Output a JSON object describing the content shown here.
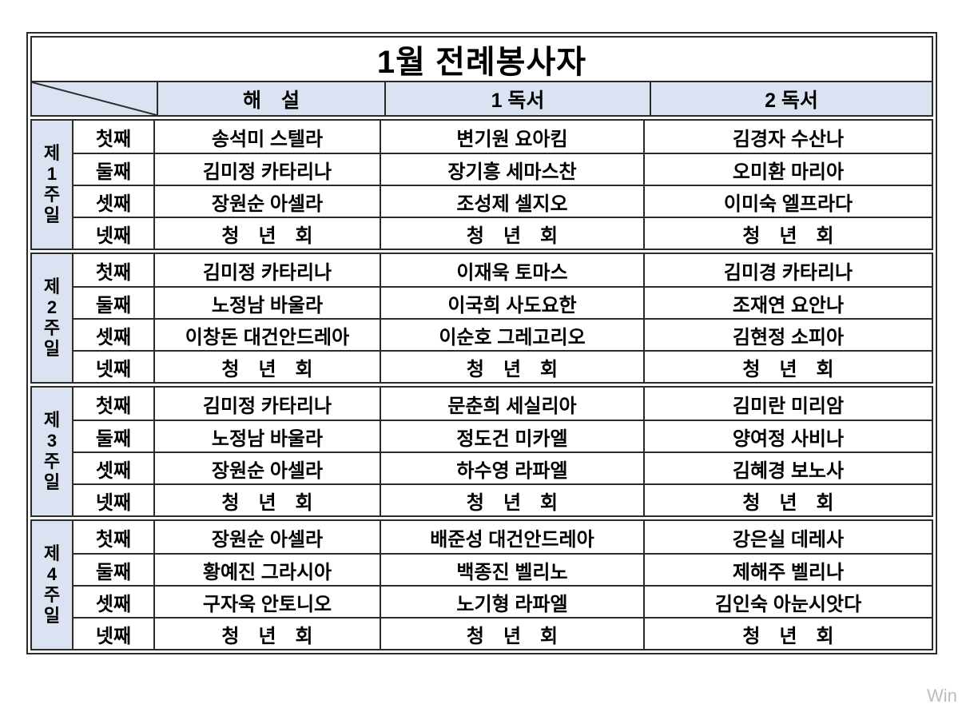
{
  "title": "1월 전례봉사자",
  "columns": [
    "해　설",
    "1 독서",
    "2 독서"
  ],
  "weeks": [
    {
      "label_lines": [
        "제",
        "1",
        "주",
        "일"
      ],
      "rows": [
        {
          "ordinal": "첫째",
          "cells": [
            "송석미 스텔라",
            "변기원 요아킴",
            "김경자 수산나"
          ]
        },
        {
          "ordinal": "둘째",
          "cells": [
            "김미정 카타리나",
            "장기흥 세마스찬",
            "오미환 마리아"
          ]
        },
        {
          "ordinal": "셋째",
          "cells": [
            "장원순 아셀라",
            "조성제 셀지오",
            "이미숙 엘프라다"
          ]
        },
        {
          "ordinal": "넷째",
          "cells": [
            "청　년　회",
            "청　년　회",
            "청　년　회"
          ]
        }
      ]
    },
    {
      "label_lines": [
        "제",
        "2",
        "주",
        "일"
      ],
      "rows": [
        {
          "ordinal": "첫째",
          "cells": [
            "김미정 카타리나",
            "이재욱 토마스",
            "김미경 카타리나"
          ]
        },
        {
          "ordinal": "둘째",
          "cells": [
            "노정남 바울라",
            "이국희 사도요한",
            "조재연 요안나"
          ]
        },
        {
          "ordinal": "셋째",
          "cells": [
            "이창돈 대건안드레아",
            "이순호 그레고리오",
            "김현정 소피아"
          ]
        },
        {
          "ordinal": "넷째",
          "cells": [
            "청　년　회",
            "청　년　회",
            "청　년　회"
          ]
        }
      ]
    },
    {
      "label_lines": [
        "제",
        "3",
        "주",
        "일"
      ],
      "rows": [
        {
          "ordinal": "첫째",
          "cells": [
            "김미정 카타리나",
            "문춘희 세실리아",
            "김미란 미리암"
          ]
        },
        {
          "ordinal": "둘째",
          "cells": [
            "노정남 바울라",
            "정도건 미카엘",
            "양여정 사비나"
          ]
        },
        {
          "ordinal": "셋째",
          "cells": [
            "장원순 아셀라",
            "하수영 라파엘",
            "김혜경 보노사"
          ]
        },
        {
          "ordinal": "넷째",
          "cells": [
            "청　년　회",
            "청　년　회",
            "청　년　회"
          ]
        }
      ]
    },
    {
      "label_lines": [
        "제",
        "4",
        "주",
        "일"
      ],
      "rows": [
        {
          "ordinal": "첫째",
          "cells": [
            "장원순 아셀라",
            "배준성 대건안드레아",
            "강은실 데레사"
          ]
        },
        {
          "ordinal": "둘째",
          "cells": [
            "황예진 그라시아",
            "백종진 벨리노",
            "제해주 벨리나"
          ]
        },
        {
          "ordinal": "셋째",
          "cells": [
            "구자욱 안토니오",
            "노기형 라파엘",
            "김인숙 아눈시앗다"
          ]
        },
        {
          "ordinal": "넷째",
          "cells": [
            "청　년　회",
            "청　년　회",
            "청　년　회"
          ]
        }
      ]
    }
  ],
  "watermark": "Win",
  "colors": {
    "header_bg": "#dbe3f2",
    "border": "#2b2b2b",
    "watermark_gray": "#b9bcc1"
  }
}
